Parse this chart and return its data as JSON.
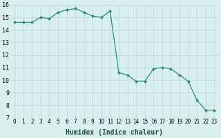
{
  "x": [
    0,
    1,
    2,
    3,
    4,
    5,
    6,
    7,
    8,
    9,
    10,
    11,
    12,
    13,
    14,
    15,
    16,
    17,
    18,
    19,
    20,
    21,
    22,
    23
  ],
  "y": [
    14.6,
    14.6,
    14.6,
    15.0,
    14.9,
    15.4,
    15.6,
    15.7,
    15.4,
    15.1,
    15.0,
    15.5,
    10.6,
    10.4,
    9.9,
    9.9,
    10.9,
    11.0,
    10.9,
    10.4,
    9.9,
    8.4,
    7.6,
    7.6
  ],
  "xlabel": "Humidex (Indice chaleur)",
  "ylim": [
    7,
    16
  ],
  "xlim": [
    -0.5,
    23.5
  ],
  "line_color": "#2d8c7a",
  "marker_color": "#2d8c7a",
  "bg_color": "#d9f0ee",
  "grid_color": "#c0dede",
  "yticks": [
    7,
    8,
    9,
    10,
    11,
    12,
    13,
    14,
    15,
    16
  ],
  "xticks": [
    0,
    1,
    2,
    3,
    4,
    5,
    6,
    7,
    8,
    9,
    10,
    11,
    12,
    13,
    14,
    15,
    16,
    17,
    18,
    19,
    20,
    21,
    22,
    23
  ],
  "xlabel_fontsize": 7,
  "tick_fontsize": 5.5,
  "ytick_fontsize": 6
}
